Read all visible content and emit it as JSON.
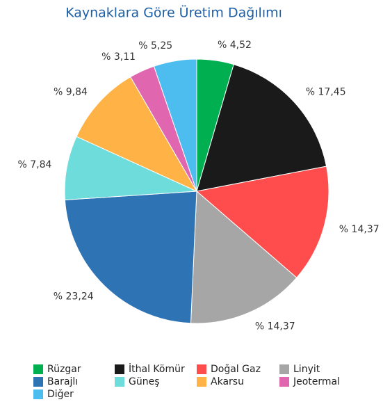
{
  "chart_data": {
    "type": "pie",
    "title": "Kaynaklara Göre Üretim Dağılımı",
    "categories": [
      "Rüzgar",
      "İthal Kömür",
      "Doğal Gaz",
      "Linyit",
      "Barajlı",
      "Güneş",
      "Akarsu",
      "Jeotermal",
      "Diğer"
    ],
    "values": [
      4.52,
      17.45,
      14.37,
      14.37,
      23.24,
      7.84,
      9.84,
      3.11,
      5.25
    ],
    "value_labels": [
      "% 4,52",
      "% 17,45",
      "% 14,37",
      "% 14,37",
      "% 23,24",
      "% 7,84",
      "% 9,84",
      "% 3,11",
      "% 5,25"
    ],
    "colors": [
      "#00b050",
      "#1a1a1a",
      "#ff4d4d",
      "#a6a6a6",
      "#2e74b5",
      "#6fdcdc",
      "#ffb347",
      "#e066b0",
      "#4dbdf0"
    ]
  }
}
